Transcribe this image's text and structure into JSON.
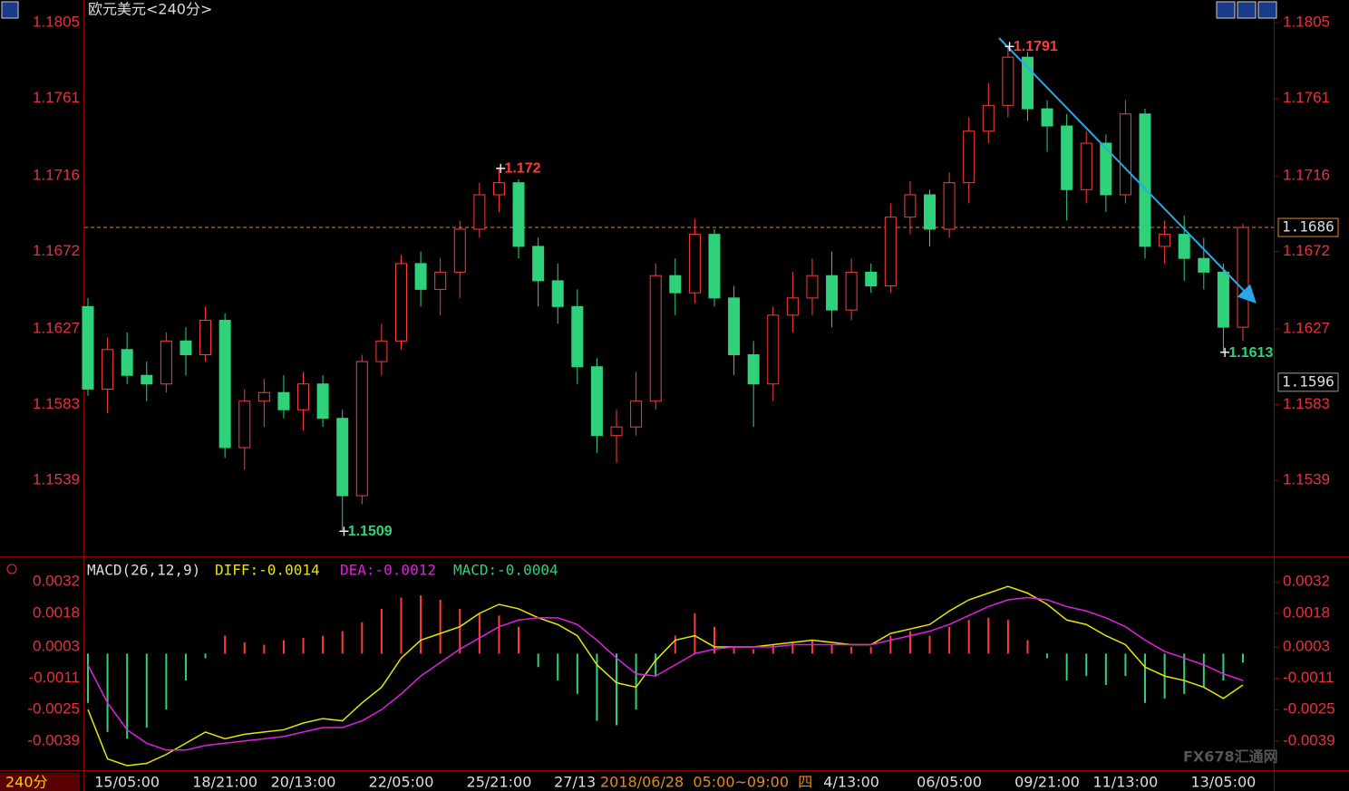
{
  "chart_data": {
    "type": "candlestick",
    "title": "欧元美元<240分>",
    "period_label": "240分",
    "watermark": "FX678汇通网",
    "crosshair_label": "2018/06/28  05:00~09:00  四",
    "categories": [
      null,
      null,
      "15/05:00",
      null,
      null,
      null,
      null,
      "18/21:00",
      null,
      null,
      null,
      "20/13:00",
      null,
      null,
      null,
      null,
      "22/05:00",
      null,
      null,
      null,
      null,
      "25/21:00",
      null,
      null,
      null,
      "27/13:",
      null,
      null,
      null,
      null,
      null,
      null,
      null,
      null,
      null,
      null,
      null,
      null,
      null,
      "4/13:00",
      null,
      null,
      null,
      null,
      "06/05:00",
      null,
      null,
      null,
      null,
      "09/21:00",
      null,
      null,
      null,
      "11/13:00",
      null,
      null,
      null,
      null,
      "13/05:00",
      null
    ],
    "open": [
      1.164,
      1.1592,
      1.1615,
      1.16,
      1.1595,
      1.162,
      1.1612,
      1.1632,
      1.1558,
      1.1585,
      1.159,
      1.158,
      1.1595,
      1.1575,
      1.153,
      1.1608,
      1.162,
      1.1665,
      1.165,
      1.166,
      1.1685,
      1.1705,
      1.1712,
      1.1675,
      1.1655,
      1.164,
      1.1605,
      1.1565,
      1.157,
      1.1585,
      1.1658,
      1.1648,
      1.1682,
      1.1645,
      1.1612,
      1.1595,
      1.1635,
      1.1645,
      1.1658,
      1.1638,
      1.166,
      1.1652,
      1.1692,
      1.1705,
      1.1685,
      1.1712,
      1.1742,
      1.1757,
      1.1785,
      1.1755,
      1.1745,
      1.1708,
      1.1735,
      1.1705,
      1.1752,
      1.1675,
      1.1682,
      1.1668,
      1.166,
      1.1628
    ],
    "high": [
      1.1645,
      1.1622,
      1.1625,
      1.1608,
      1.1625,
      1.1628,
      1.164,
      1.1636,
      1.1592,
      1.1598,
      1.16,
      1.1602,
      1.16,
      1.158,
      1.1612,
      1.163,
      1.167,
      1.1672,
      1.1668,
      1.169,
      1.1712,
      1.172,
      1.1714,
      1.168,
      1.1665,
      1.165,
      1.161,
      1.158,
      1.1602,
      1.1665,
      1.1668,
      1.1691,
      1.1685,
      1.1652,
      1.162,
      1.164,
      1.166,
      1.1668,
      1.1672,
      1.1668,
      1.1665,
      1.17,
      1.1713,
      1.1708,
      1.1718,
      1.175,
      1.177,
      1.1791,
      1.1788,
      1.176,
      1.1752,
      1.1742,
      1.174,
      1.176,
      1.1755,
      1.169,
      1.1693,
      1.168,
      1.1665,
      1.1688
    ],
    "low": [
      1.1588,
      1.1578,
      1.1595,
      1.1585,
      1.159,
      1.16,
      1.1608,
      1.1552,
      1.1545,
      1.157,
      1.1575,
      1.1568,
      1.157,
      1.1509,
      1.1525,
      1.16,
      1.1615,
      1.164,
      1.1635,
      1.1645,
      1.168,
      1.1695,
      1.1668,
      1.164,
      1.163,
      1.1595,
      1.1555,
      1.1549,
      1.1565,
      1.158,
      1.1635,
      1.1642,
      1.164,
      1.16,
      1.157,
      1.1585,
      1.1625,
      1.1635,
      1.1628,
      1.1632,
      1.1648,
      1.1648,
      1.1682,
      1.1675,
      1.168,
      1.17,
      1.1735,
      1.175,
      1.1748,
      1.173,
      1.169,
      1.17,
      1.1695,
      1.17,
      1.1668,
      1.1665,
      1.1655,
      1.165,
      1.1613,
      1.162
    ],
    "close": [
      1.1592,
      1.1615,
      1.16,
      1.1595,
      1.162,
      1.1612,
      1.1632,
      1.1558,
      1.1585,
      1.159,
      1.158,
      1.1595,
      1.1575,
      1.153,
      1.1608,
      1.162,
      1.1665,
      1.165,
      1.166,
      1.1685,
      1.1705,
      1.1712,
      1.1675,
      1.1655,
      1.164,
      1.1605,
      1.1565,
      1.157,
      1.1585,
      1.1658,
      1.1648,
      1.1682,
      1.1645,
      1.1612,
      1.1595,
      1.1635,
      1.1645,
      1.1658,
      1.1638,
      1.166,
      1.1652,
      1.1692,
      1.1705,
      1.1685,
      1.1712,
      1.1742,
      1.1757,
      1.1785,
      1.1755,
      1.1745,
      1.1708,
      1.1735,
      1.1705,
      1.1752,
      1.1675,
      1.1682,
      1.1668,
      1.166,
      1.1628,
      1.1686
    ],
    "up_color": "#ff3c3c",
    "down_color": "#2fd27a",
    "ylim": [
      1.14995,
      1.1813
    ],
    "yticks": [
      1.1805,
      1.1761,
      1.1716,
      1.1672,
      1.1627,
      1.1583,
      1.1539
    ],
    "price_tags": [
      1.1686,
      1.1596
    ],
    "extremes": [
      1.1791,
      1.172,
      1.1613,
      1.1509
    ],
    "macd": {
      "title": "MACD(26,12,9)",
      "diff_label": "DIFF:-0.0014",
      "dea_label": "DEA:-0.0012",
      "macd_label": "MACD:-0.0004",
      "ylim": [
        -0.005,
        0.0041
      ],
      "yticks": [
        0.0032,
        0.0018,
        0.0003,
        -0.0011,
        -0.0025,
        -0.0039
      ],
      "histogram": [
        -0.0022,
        -0.0035,
        -0.0038,
        -0.0033,
        -0.0025,
        -0.0012,
        -0.0002,
        0.0008,
        0.0005,
        0.0004,
        0.0006,
        0.0007,
        0.0008,
        0.001,
        0.0014,
        0.002,
        0.0025,
        0.0026,
        0.0024,
        0.002,
        0.0018,
        0.0017,
        0.0012,
        -0.0006,
        -0.0012,
        -0.0018,
        -0.003,
        -0.0032,
        -0.0025,
        -0.001,
        0.0008,
        0.0018,
        0.0012,
        0.0003,
        0.0002,
        0.0004,
        0.0005,
        0.0006,
        0.0004,
        0.0003,
        0.0003,
        0.0008,
        0.001,
        0.0008,
        0.0012,
        0.0015,
        0.0016,
        0.0015,
        0.0006,
        -0.0002,
        -0.0012,
        -0.001,
        -0.0014,
        -0.001,
        -0.0022,
        -0.002,
        -0.0018,
        -0.0015,
        -0.0012,
        -0.0004
      ],
      "series": [
        {
          "name": "DIFF",
          "color": "#e6e600",
          "values": [
            -0.0025,
            -0.0047,
            -0.005,
            -0.0049,
            -0.0045,
            -0.004,
            -0.0035,
            -0.0038,
            -0.0036,
            -0.0035,
            -0.0034,
            -0.0031,
            -0.0029,
            -0.003,
            -0.0022,
            -0.0015,
            -0.0002,
            0.0006,
            0.0009,
            0.0012,
            0.0018,
            0.0022,
            0.002,
            0.0016,
            0.0013,
            0.0008,
            -0.0005,
            -0.0013,
            -0.0015,
            -0.0003,
            0.0006,
            0.0008,
            0.0003,
            0.0003,
            0.0003,
            0.0004,
            0.0005,
            0.0006,
            0.0005,
            0.0004,
            0.0004,
            0.0009,
            0.0011,
            0.0013,
            0.0019,
            0.0024,
            0.0027,
            0.003,
            0.0027,
            0.0022,
            0.0015,
            0.0013,
            0.0008,
            0.0004,
            -0.0006,
            -0.001,
            -0.0012,
            -0.0015,
            -0.002,
            -0.0014
          ]
        },
        {
          "name": "DEA",
          "color": "#e020e0",
          "values": [
            -0.0005,
            -0.0022,
            -0.0034,
            -0.004,
            -0.0043,
            -0.0043,
            -0.0041,
            -0.004,
            -0.0039,
            -0.0038,
            -0.0037,
            -0.0035,
            -0.0033,
            -0.0033,
            -0.003,
            -0.0025,
            -0.0018,
            -0.001,
            -0.0004,
            0.0002,
            0.0007,
            0.0012,
            0.0015,
            0.0016,
            0.0016,
            0.0013,
            0.0006,
            -0.0002,
            -0.0009,
            -0.001,
            -0.0005,
            0.0,
            0.0002,
            0.0003,
            0.0003,
            0.0003,
            0.0004,
            0.0004,
            0.0004,
            0.0004,
            0.0004,
            0.0006,
            0.0008,
            0.001,
            0.0013,
            0.0017,
            0.0021,
            0.0024,
            0.0025,
            0.0024,
            0.0021,
            0.0019,
            0.0016,
            0.0012,
            0.0006,
            0.0001,
            -0.0002,
            -0.0005,
            -0.0009,
            -0.0012
          ]
        }
      ]
    }
  }
}
